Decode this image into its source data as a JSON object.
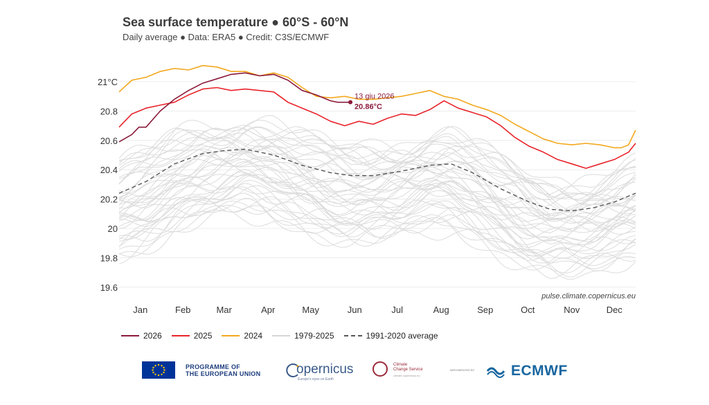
{
  "header": {
    "title": "Sea surface temperature ● 60°S - 60°N",
    "subtitle": "Daily average ● Data: ERA5 ● Credit: C3S/ECMWF"
  },
  "source_note": "pulse.climate.copernicus.eu",
  "annotation": {
    "date": "13 giu 2026",
    "value": "20.86°C",
    "day": 164,
    "temp": 20.86
  },
  "legend": [
    {
      "label": "2026",
      "color": "#8b1a3a",
      "style": "solid"
    },
    {
      "label": "2025",
      "color": "#e8232a",
      "style": "solid"
    },
    {
      "label": "2024",
      "color": "#f2a81d",
      "style": "solid"
    },
    {
      "label": "1979-2025",
      "color": "#d6d6d6",
      "style": "solid"
    },
    {
      "label": "1991-2020 average",
      "color": "#555555",
      "style": "dashed"
    }
  ],
  "logos": {
    "eu_line1": "PROGRAMME OF",
    "eu_line2": "THE EUROPEAN UNION",
    "copernicus": "opernicus",
    "copernicus_sub": "Europe's eyes on Earth",
    "c3s_line1": "Climate",
    "c3s_line2": "Change Service",
    "c3s_sub": "climate.copernicus.eu",
    "implemented": "IMPLEMENTED BY",
    "ecmwf": "ECMWF"
  },
  "chart_data": {
    "type": "line",
    "title": "Sea surface temperature ● 60°S - 60°N",
    "subtitle": "Daily average ● Data: ERA5 ● Credit: C3S/ECMWF",
    "xlabel": "",
    "ylabel": "",
    "x_unit": "day of year",
    "xlim": [
      1,
      365
    ],
    "ylim": [
      19.55,
      21.1
    ],
    "yticks": [
      19.6,
      19.8,
      20,
      20.2,
      20.4,
      20.6,
      20.8,
      21
    ],
    "ytick_labels": [
      "19.6",
      "19.8",
      "20",
      "20.2",
      "20.4",
      "20.6",
      "20.8",
      "21°C"
    ],
    "month_labels": [
      "Jan",
      "Feb",
      "Mar",
      "Apr",
      "May",
      "Jun",
      "Jul",
      "Aug",
      "Sep",
      "Oct",
      "Nov",
      "Dec"
    ],
    "month_days": [
      16,
      46,
      75,
      106,
      136,
      167,
      197,
      228,
      259,
      289,
      320,
      350
    ],
    "grid": true,
    "legend_position": "bottom-left",
    "series": [
      {
        "name": "1991-2020 average",
        "color": "#555555",
        "dash": true,
        "x": [
          1,
          20,
          40,
          60,
          75,
          90,
          110,
          130,
          150,
          165,
          180,
          200,
          220,
          235,
          250,
          270,
          290,
          305,
          320,
          335,
          350,
          365
        ],
        "y": [
          20.24,
          20.32,
          20.44,
          20.51,
          20.53,
          20.54,
          20.5,
          20.43,
          20.38,
          20.36,
          20.36,
          20.39,
          20.43,
          20.44,
          20.38,
          20.27,
          20.18,
          20.13,
          20.12,
          20.14,
          20.18,
          20.24
        ]
      },
      {
        "name": "2024",
        "color": "#f2a81d",
        "x": [
          1,
          10,
          20,
          30,
          40,
          50,
          60,
          70,
          80,
          90,
          100,
          110,
          120,
          130,
          140,
          150,
          160,
          170,
          180,
          190,
          200,
          210,
          220,
          230,
          240,
          250,
          260,
          270,
          280,
          290,
          300,
          310,
          320,
          330,
          340,
          350,
          355,
          360,
          365
        ],
        "y": [
          20.93,
          21.01,
          21.03,
          21.07,
          21.09,
          21.08,
          21.11,
          21.1,
          21.07,
          21.07,
          21.04,
          21.06,
          21.03,
          20.96,
          20.9,
          20.89,
          20.9,
          20.88,
          20.88,
          20.89,
          20.9,
          20.92,
          20.94,
          20.9,
          20.88,
          20.84,
          20.81,
          20.77,
          20.71,
          20.66,
          20.61,
          20.58,
          20.57,
          20.58,
          20.57,
          20.55,
          20.55,
          20.57,
          20.67
        ]
      },
      {
        "name": "2025",
        "color": "#e8232a",
        "x": [
          1,
          10,
          20,
          30,
          40,
          50,
          60,
          70,
          80,
          90,
          100,
          110,
          120,
          130,
          140,
          150,
          160,
          170,
          180,
          190,
          200,
          210,
          220,
          230,
          240,
          250,
          260,
          270,
          280,
          290,
          300,
          310,
          320,
          330,
          340,
          350,
          360,
          365
        ],
        "y": [
          20.69,
          20.78,
          20.82,
          20.84,
          20.86,
          20.91,
          20.95,
          20.96,
          20.94,
          20.95,
          20.94,
          20.93,
          20.86,
          20.82,
          20.78,
          20.73,
          20.7,
          20.73,
          20.71,
          20.75,
          20.78,
          20.77,
          20.81,
          20.87,
          20.82,
          20.79,
          20.76,
          20.7,
          20.62,
          20.56,
          20.52,
          20.47,
          20.44,
          20.41,
          20.44,
          20.47,
          20.52,
          20.58
        ]
      },
      {
        "name": "2026",
        "color": "#8b1a3a",
        "x": [
          1,
          10,
          15,
          20,
          30,
          40,
          50,
          60,
          70,
          80,
          90,
          100,
          110,
          120,
          130,
          140,
          150,
          155,
          160,
          164
        ],
        "y": [
          20.59,
          20.64,
          20.69,
          20.69,
          20.8,
          20.88,
          20.94,
          20.99,
          21.02,
          21.05,
          21.06,
          21.04,
          21.05,
          21.01,
          20.94,
          20.91,
          20.87,
          20.86,
          20.86,
          20.86
        ]
      }
    ]
  }
}
